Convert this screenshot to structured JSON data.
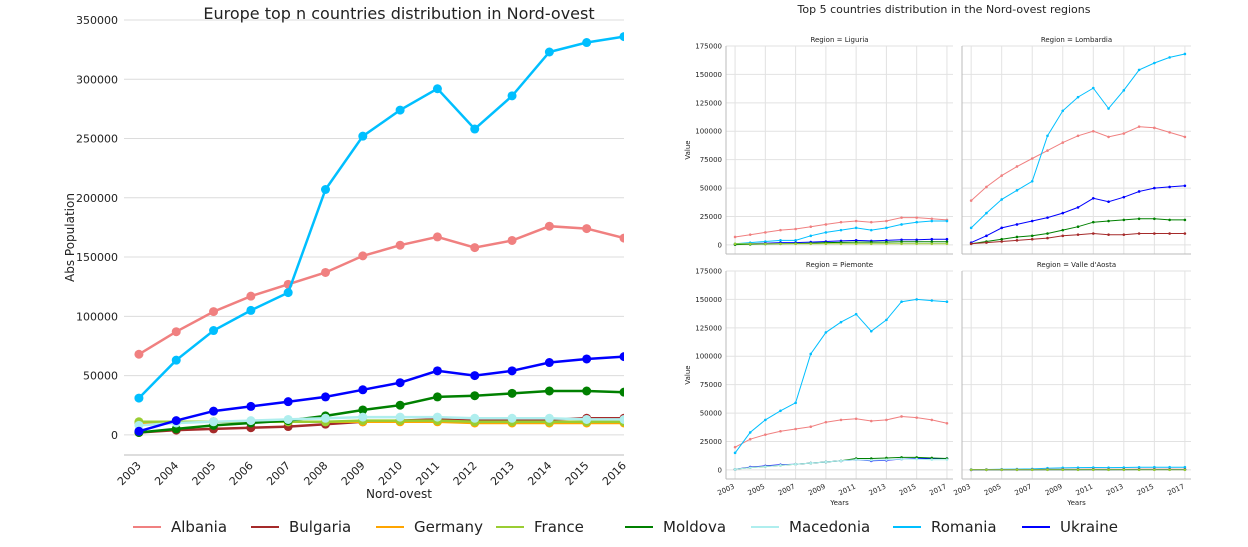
{
  "colors": {
    "Albania": "#f08080",
    "Bulgaria": "#a52a2a",
    "Germany": "#ffa500",
    "France": "#9acd32",
    "Moldova": "#008000",
    "Macedonia": "#afeeee",
    "Romania": "#00bfff",
    "Ukraine": "#0000ff"
  },
  "legend": {
    "items": [
      "Albania",
      "Bulgaria",
      "Germany",
      "France",
      "Moldova",
      "Macedonia",
      "Romania",
      "Ukraine"
    ]
  },
  "chart_data": [
    {
      "type": "line",
      "title": "Europe top n countries distribution in Nord-ovest",
      "xlabel": "Nord-ovest",
      "ylabel": "Abs Population",
      "x": [
        2003,
        2004,
        2005,
        2006,
        2007,
        2008,
        2009,
        2010,
        2011,
        2012,
        2013,
        2014,
        2015,
        2016
      ],
      "x_tick_labels": [
        "2003",
        "2004",
        "2005",
        "2006",
        "2007",
        "2008",
        "2009",
        "2010",
        "2011",
        "2012",
        "2013",
        "2014",
        "2015",
        "2016"
      ],
      "ylim": [
        -17000,
        350000
      ],
      "y_ticks": [
        0,
        50000,
        100000,
        150000,
        200000,
        250000,
        300000,
        350000
      ],
      "grid": "horizontal",
      "series": [
        {
          "name": "Albania",
          "values": [
            68000,
            87000,
            104000,
            117000,
            127000,
            137000,
            151000,
            160000,
            167000,
            158000,
            164000,
            176000,
            174000,
            166000
          ]
        },
        {
          "name": "Bulgaria",
          "values": [
            2000,
            4000,
            5000,
            6000,
            7000,
            9000,
            11000,
            12000,
            13000,
            12000,
            12000,
            13000,
            14000,
            14000
          ]
        },
        {
          "name": "Germany",
          "values": [
            10000,
            11000,
            11000,
            11000,
            11000,
            11000,
            11000,
            11000,
            11000,
            10000,
            10000,
            10000,
            10000,
            10000
          ]
        },
        {
          "name": "France",
          "values": [
            11000,
            11000,
            11000,
            11000,
            11000,
            11000,
            12000,
            12000,
            12000,
            11000,
            11000,
            11000,
            11000,
            11000
          ]
        },
        {
          "name": "Moldova",
          "values": [
            2000,
            5000,
            8000,
            10000,
            12000,
            16000,
            21000,
            25000,
            32000,
            33000,
            35000,
            37000,
            37000,
            36000
          ]
        },
        {
          "name": "Macedonia",
          "values": [
            8000,
            10000,
            11000,
            12000,
            13000,
            14000,
            15000,
            15000,
            15000,
            14000,
            14000,
            14000,
            13000,
            13000
          ]
        },
        {
          "name": "Romania",
          "values": [
            31000,
            63000,
            88000,
            105000,
            120000,
            207000,
            252000,
            274000,
            292000,
            258000,
            286000,
            323000,
            331000,
            336000
          ]
        },
        {
          "name": "Ukraine",
          "values": [
            3000,
            12000,
            20000,
            24000,
            28000,
            32000,
            38000,
            44000,
            54000,
            50000,
            54000,
            61000,
            64000,
            66000
          ]
        }
      ]
    },
    {
      "type": "line",
      "title": "Top 5 countries distribution in the Nord-ovest regions",
      "x": [
        2003,
        2004,
        2005,
        2006,
        2007,
        2008,
        2009,
        2010,
        2011,
        2012,
        2013,
        2014,
        2015,
        2016,
        2017
      ],
      "x_tick_labels": [
        "2003",
        "2005",
        "2007",
        "2009",
        "2011",
        "2013",
        "2015",
        "2017"
      ],
      "y_ticks": [
        0,
        25000,
        50000,
        75000,
        100000,
        125000,
        150000,
        175000
      ],
      "y_tick_labels": [
        "0",
        "25000",
        "50000",
        "75000",
        "100000",
        "125000",
        "150000",
        "175000"
      ],
      "ylim": [
        -8000,
        175000
      ],
      "ylabel": "Value",
      "xlabel": "Years",
      "facets": [
        {
          "title": "Region = Liguria",
          "series": [
            {
              "name": "Albania",
              "values": [
                7000,
                9000,
                11000,
                13000,
                14000,
                16000,
                18000,
                20000,
                21000,
                20000,
                21000,
                24000,
                24000,
                23000,
                22000
              ]
            },
            {
              "name": "Romania",
              "values": [
                1000,
                2000,
                3000,
                4000,
                4000,
                8000,
                11000,
                13000,
                15000,
                13000,
                15000,
                18000,
                20000,
                21000,
                21000
              ]
            },
            {
              "name": "Ukraine",
              "values": [
                500,
                1000,
                1500,
                2000,
                2000,
                2500,
                3000,
                3500,
                4000,
                3500,
                4000,
                4500,
                4500,
                5000,
                5000
              ]
            },
            {
              "name": "Moldova",
              "values": [
                300,
                500,
                800,
                1000,
                1200,
                1500,
                2000,
                2200,
                2500,
                2500,
                2500,
                2800,
                2800,
                2800,
                2800
              ]
            },
            {
              "name": "France",
              "values": [
                1000,
                1000,
                1000,
                1000,
                1000,
                1000,
                1000,
                1000,
                1000,
                1000,
                1000,
                1000,
                1000,
                1000,
                1000
              ]
            }
          ]
        },
        {
          "title": "Region = Lombardia",
          "series": [
            {
              "name": "Albania",
              "values": [
                39000,
                51000,
                61000,
                69000,
                76000,
                83000,
                90000,
                96000,
                100000,
                95000,
                98000,
                104000,
                103000,
                99000,
                95000
              ]
            },
            {
              "name": "Romania",
              "values": [
                15000,
                28000,
                40000,
                48000,
                56000,
                96000,
                118000,
                130000,
                138000,
                120000,
                136000,
                154000,
                160000,
                165000,
                168000
              ]
            },
            {
              "name": "Ukraine",
              "values": [
                2000,
                8000,
                15000,
                18000,
                21000,
                24000,
                28000,
                33000,
                41000,
                38000,
                42000,
                47000,
                50000,
                51000,
                52000
              ]
            },
            {
              "name": "Moldova",
              "values": [
                1000,
                3000,
                5000,
                7000,
                8000,
                10000,
                13000,
                16000,
                20000,
                21000,
                22000,
                23000,
                23000,
                22000,
                22000
              ]
            },
            {
              "name": "Bulgaria",
              "values": [
                1000,
                2000,
                3000,
                4000,
                5000,
                6000,
                8000,
                9000,
                10000,
                9000,
                9000,
                10000,
                10000,
                10000,
                10000
              ]
            }
          ]
        },
        {
          "title": "Region = Piemonte",
          "series": [
            {
              "name": "Albania",
              "values": [
                20000,
                27000,
                31000,
                34000,
                36000,
                38000,
                42000,
                44000,
                45000,
                43000,
                44000,
                47000,
                46000,
                44000,
                41000
              ]
            },
            {
              "name": "Romania",
              "values": [
                15000,
                33000,
                44000,
                52000,
                59000,
                102000,
                121000,
                130000,
                137000,
                122000,
                132000,
                148000,
                150000,
                149000,
                148000
              ]
            },
            {
              "name": "Ukraine",
              "values": [
                500,
                2500,
                3500,
                4500,
                5000,
                6000,
                7000,
                8000,
                9000,
                8000,
                8500,
                9500,
                10000,
                10000,
                10000
              ]
            },
            {
              "name": "Moldova",
              "values": [
                500,
                2000,
                3000,
                4000,
                5000,
                6000,
                7000,
                8000,
                10000,
                10000,
                10500,
                11000,
                11000,
                10500,
                10000
              ]
            },
            {
              "name": "Macedonia",
              "values": [
                500,
                2000,
                3000,
                4000,
                5000,
                6000,
                7000,
                8000,
                9000,
                8500,
                9000,
                9500,
                9500,
                9000,
                9000
              ]
            }
          ]
        },
        {
          "title": "Region = Valle d'Aosta",
          "series": [
            {
              "name": "Romania",
              "values": [
                300,
                400,
                500,
                700,
                900,
                1500,
                1800,
                2000,
                2100,
                2000,
                2100,
                2300,
                2400,
                2400,
                2400
              ]
            },
            {
              "name": "Albania",
              "values": [
                200,
                300,
                300,
                400,
                400,
                500,
                600,
                600,
                700,
                600,
                600,
                700,
                700,
                700,
                600
              ]
            },
            {
              "name": "Moldova",
              "values": [
                100,
                100,
                200,
                200,
                200,
                300,
                300,
                300,
                400,
                300,
                400,
                400,
                400,
                400,
                400
              ]
            },
            {
              "name": "Ukraine",
              "values": [
                50,
                100,
                100,
                100,
                200,
                200,
                200,
                200,
                200,
                200,
                200,
                300,
                300,
                300,
                300
              ]
            },
            {
              "name": "France",
              "values": [
                100,
                100,
                100,
                100,
                100,
                100,
                100,
                100,
                100,
                100,
                100,
                100,
                100,
                100,
                100
              ]
            }
          ]
        }
      ]
    }
  ]
}
